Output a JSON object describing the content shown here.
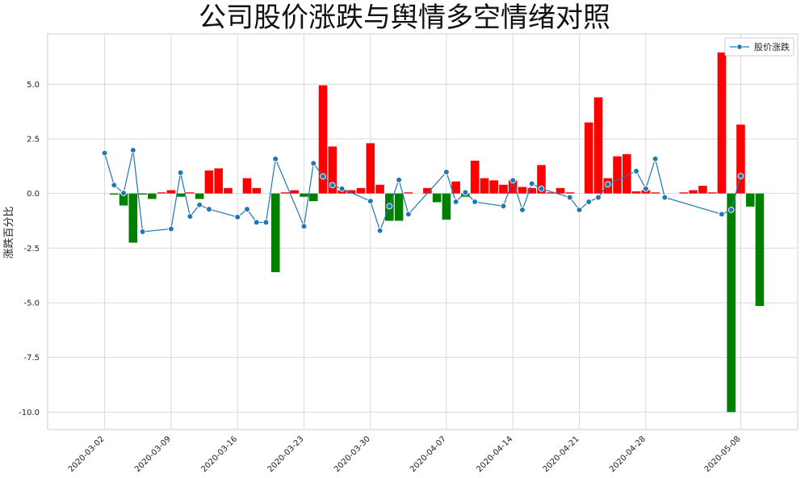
{
  "chart_data": {
    "type": "bar+line",
    "title": "公司股价涨跌与舆情多空情绪对照",
    "ylabel": "涨跌百分比",
    "xlabel": "",
    "ylim": [
      -10.8,
      7.3
    ],
    "xlim": [
      "2020-02-25",
      "2020-05-14"
    ],
    "yticks": [
      5.0,
      2.5,
      0.0,
      -2.5,
      -5.0,
      -7.5,
      -10.0
    ],
    "ytick_labels": [
      "5.0",
      "2.5",
      "0.0",
      "-2.5",
      "-5.0",
      "-7.5",
      "-10.0"
    ],
    "xticks": [
      "2020-03-02",
      "2020-03-09",
      "2020-03-16",
      "2020-03-23",
      "2020-03-30",
      "2020-04-07",
      "2020-04-14",
      "2020-04-21",
      "2020-04-28",
      "2020-05-08"
    ],
    "grid": true,
    "legend": {
      "position": "top-right",
      "entries": [
        "股价涨跌"
      ]
    },
    "colors": {
      "up": "#ff0000",
      "down": "#008000",
      "line": "#1f77b4",
      "grid": "#d9d9d9"
    },
    "bars": {
      "x": [
        "2020-03-03",
        "2020-03-04",
        "2020-03-05",
        "2020-03-06",
        "2020-03-07",
        "2020-03-08",
        "2020-03-09",
        "2020-03-10",
        "2020-03-11",
        "2020-03-12",
        "2020-03-13",
        "2020-03-14",
        "2020-03-15",
        "2020-03-17",
        "2020-03-18",
        "2020-03-20",
        "2020-03-21",
        "2020-03-22",
        "2020-03-23",
        "2020-03-24",
        "2020-03-25",
        "2020-03-26",
        "2020-03-27",
        "2020-03-28",
        "2020-03-29",
        "2020-03-30",
        "2020-03-31",
        "2020-04-01",
        "2020-04-02",
        "2020-04-03",
        "2020-04-05",
        "2020-04-06",
        "2020-04-07",
        "2020-04-08",
        "2020-04-09",
        "2020-04-10",
        "2020-04-11",
        "2020-04-12",
        "2020-04-13",
        "2020-04-14",
        "2020-04-15",
        "2020-04-16",
        "2020-04-17",
        "2020-04-18",
        "2020-04-19",
        "2020-04-20",
        "2020-04-22",
        "2020-04-23",
        "2020-04-24",
        "2020-04-25",
        "2020-04-26",
        "2020-04-27",
        "2020-04-28",
        "2020-04-29",
        "2020-05-02",
        "2020-05-03",
        "2020-05-04",
        "2020-05-05",
        "2020-05-06",
        "2020-05-07",
        "2020-05-08",
        "2020-05-09",
        "2020-05-10"
      ],
      "values": [
        -0.05,
        -0.55,
        -2.25,
        -0.05,
        -0.25,
        0.05,
        0.15,
        -0.15,
        0.05,
        -0.25,
        1.05,
        1.15,
        0.25,
        0.7,
        0.25,
        -3.6,
        0.05,
        0.15,
        -0.15,
        -0.35,
        4.95,
        2.15,
        0.15,
        0.15,
        0.25,
        2.3,
        0.4,
        -1.25,
        -1.25,
        0.05,
        0.25,
        -0.4,
        -1.2,
        0.55,
        -0.15,
        1.5,
        0.7,
        0.6,
        0.4,
        0.6,
        0.3,
        0.25,
        1.3,
        0.05,
        0.25,
        0.05,
        3.25,
        4.4,
        0.7,
        1.7,
        1.8,
        0.1,
        0.15,
        0.05,
        0.05,
        0.15,
        0.35,
        0.05,
        6.45,
        -10.0,
        3.15,
        -0.6,
        -5.15
      ]
    },
    "series": [
      {
        "name": "股价涨跌",
        "x": [
          "2020-03-02",
          "2020-03-03",
          "2020-03-04",
          "2020-03-05",
          "2020-03-06",
          "2020-03-09",
          "2020-03-10",
          "2020-03-11",
          "2020-03-12",
          "2020-03-13",
          "2020-03-16",
          "2020-03-17",
          "2020-03-18",
          "2020-03-19",
          "2020-03-20",
          "2020-03-23",
          "2020-03-24",
          "2020-03-25",
          "2020-03-26",
          "2020-03-27",
          "2020-03-30",
          "2020-03-31",
          "2020-04-01",
          "2020-04-02",
          "2020-04-03",
          "2020-04-07",
          "2020-04-08",
          "2020-04-09",
          "2020-04-10",
          "2020-04-13",
          "2020-04-14",
          "2020-04-15",
          "2020-04-16",
          "2020-04-17",
          "2020-04-20",
          "2020-04-21",
          "2020-04-22",
          "2020-04-23",
          "2020-04-24",
          "2020-04-27",
          "2020-04-28",
          "2020-04-29",
          "2020-04-30",
          "2020-05-06",
          "2020-05-07",
          "2020-05-08"
        ],
        "values": [
          1.85,
          0.38,
          0.02,
          1.98,
          -1.75,
          -1.62,
          0.95,
          -1.05,
          -0.52,
          -0.72,
          -1.08,
          -0.72,
          -1.32,
          -1.32,
          1.58,
          -1.5,
          1.38,
          0.78,
          0.38,
          0.22,
          -0.35,
          -1.7,
          -0.58,
          0.62,
          -0.95,
          0.98,
          -0.38,
          0.05,
          -0.38,
          -0.58,
          0.6,
          -0.75,
          0.45,
          0.22,
          -0.18,
          -0.75,
          -0.38,
          -0.18,
          0.42,
          1.02,
          0.22,
          1.58,
          -0.18,
          -0.95,
          -0.75,
          0.8
        ]
      }
    ]
  }
}
